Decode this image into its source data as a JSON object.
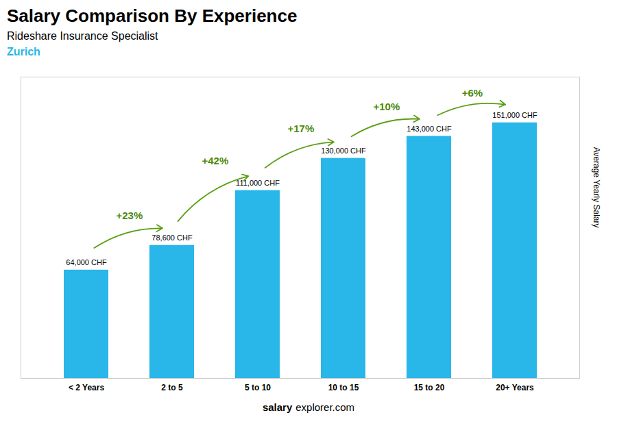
{
  "chart_data": {
    "type": "bar",
    "title": "Salary Comparison By Experience",
    "subtitle": "Rideshare Insurance Specialist",
    "categories": [
      "< 2 Years",
      "2 to 5",
      "5 to 10",
      "10 to 15",
      "15 to 20",
      "20+ Years"
    ],
    "values": [
      64000,
      78600,
      111000,
      130000,
      143000,
      151000
    ],
    "value_labels": [
      "64,000 CHF",
      "78,600 CHF",
      "111,000 CHF",
      "130,000 CHF",
      "143,000 CHF",
      "151,000 CHF"
    ],
    "data_labels": true,
    "color": "#29b6e8",
    "ylabel": "Average Yearly Salary",
    "ylim": [
      0,
      178000
    ],
    "yticks": [],
    "tick_labels": "x",
    "grid": false,
    "change_labels": [
      "+23%",
      "+42%",
      "+17%",
      "+10%",
      "+6%"
    ],
    "annotations": [
      "Zurich",
      "salary",
      "explorer.com"
    ]
  }
}
